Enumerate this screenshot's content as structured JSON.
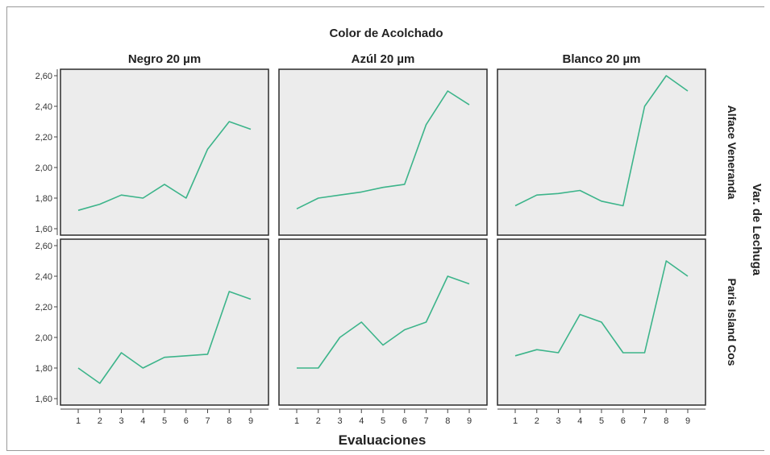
{
  "chart_data": {
    "type": "line",
    "title": "Color de Acolchado",
    "xlabel": "Evaluaciones",
    "row_group_label": "Var. de Lechuga",
    "x": [
      1,
      2,
      3,
      4,
      5,
      6,
      7,
      8,
      9
    ],
    "x_ticks": [
      "1",
      "2",
      "3",
      "4",
      "5",
      "6",
      "7",
      "8",
      "9"
    ],
    "ylim": [
      1.6,
      2.6
    ],
    "y_ticks": [
      "1,60",
      "1,80",
      "2,00",
      "2,20",
      "2,40",
      "2,60"
    ],
    "y_tick_values": [
      1.6,
      1.8,
      2.0,
      2.2,
      2.4,
      2.6
    ],
    "columns": [
      "Negro 20 µm",
      "Azúl 20 µm",
      "Blanco 20 µm"
    ],
    "rows": [
      "Alface Veneranda",
      "Paris Island Cos"
    ],
    "line_color": "#3cb48a",
    "panel_bg": "#ececec",
    "grid": false,
    "panels": [
      {
        "row": 0,
        "col": 0,
        "values": [
          1.72,
          1.76,
          1.82,
          1.8,
          1.89,
          1.8,
          2.12,
          2.3,
          2.25
        ]
      },
      {
        "row": 0,
        "col": 1,
        "values": [
          1.73,
          1.8,
          1.82,
          1.84,
          1.87,
          1.89,
          2.28,
          2.5,
          2.41
        ]
      },
      {
        "row": 0,
        "col": 2,
        "values": [
          1.75,
          1.82,
          1.83,
          1.85,
          1.78,
          1.75,
          2.4,
          2.6,
          2.5
        ]
      },
      {
        "row": 1,
        "col": 0,
        "values": [
          1.8,
          1.7,
          1.9,
          1.8,
          1.87,
          1.88,
          1.89,
          2.3,
          2.25
        ]
      },
      {
        "row": 1,
        "col": 1,
        "values": [
          1.8,
          1.8,
          2.0,
          2.1,
          1.95,
          2.05,
          2.1,
          2.4,
          2.35
        ]
      },
      {
        "row": 1,
        "col": 2,
        "values": [
          1.88,
          1.92,
          1.9,
          2.15,
          2.1,
          1.9,
          1.9,
          2.5,
          2.4
        ]
      }
    ]
  }
}
